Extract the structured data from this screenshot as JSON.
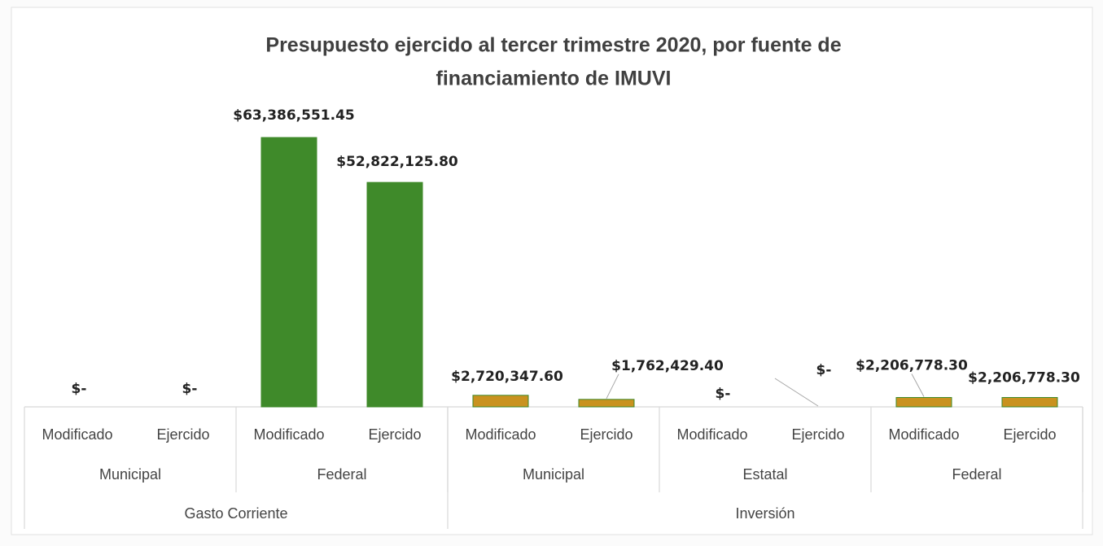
{
  "chart_data": {
    "type": "bar",
    "title_lines": [
      "Presupuesto ejercido al tercer trimestre 2020, por fuente de",
      "financiamiento de IMUVI"
    ],
    "groups": [
      {
        "name": "Gasto Corriente",
        "color": "#3f8a2a",
        "subgroups": [
          {
            "name": "Municipal",
            "categories": [
              "Modificado",
              "Ejercido"
            ],
            "values": [
              0,
              0
            ],
            "value_labels": [
              "$-",
              "$-"
            ]
          },
          {
            "name": "Federal",
            "categories": [
              "Modificado",
              "Ejercido"
            ],
            "values": [
              63386551.45,
              52822125.8
            ],
            "value_labels": [
              "$63,386,551.45",
              "$52,822,125.80"
            ]
          }
        ]
      },
      {
        "name": "Inversión",
        "color": "#c9921f",
        "subgroups": [
          {
            "name": "Municipal",
            "categories": [
              "Modificado",
              "Ejercido"
            ],
            "values": [
              2720347.6,
              1762429.4
            ],
            "value_labels": [
              "$2,720,347.60",
              "$1,762,429.40"
            ]
          },
          {
            "name": "Estatal",
            "categories": [
              "Modificado",
              "Ejercido"
            ],
            "values": [
              0,
              0
            ],
            "value_labels": [
              "$-",
              "$-"
            ]
          },
          {
            "name": "Federal",
            "categories": [
              "Modificado",
              "Ejercido"
            ],
            "values": [
              2206778.3,
              2206778.3
            ],
            "value_labels": [
              "$2,206,778.30",
              "$2,206,778.30"
            ]
          }
        ]
      }
    ]
  }
}
